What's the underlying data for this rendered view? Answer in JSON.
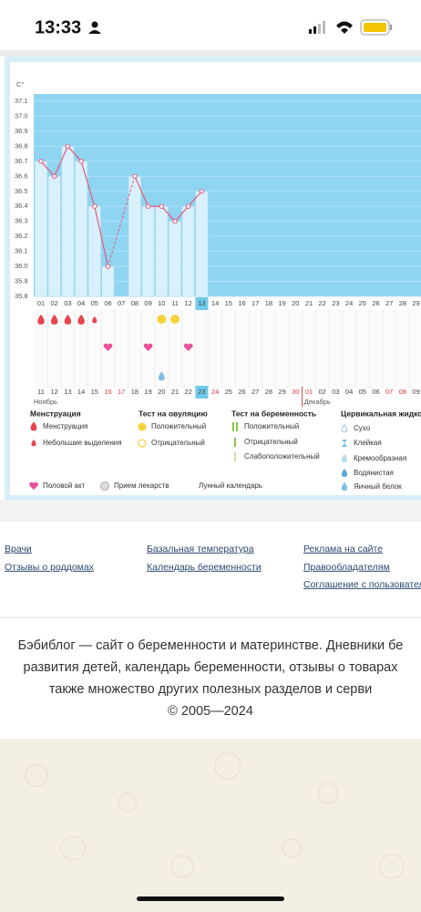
{
  "status_bar": {
    "time": "13:33"
  },
  "chart_data": {
    "type": "line",
    "y_label": "C°",
    "categories": [
      "01",
      "02",
      "03",
      "04",
      "05",
      "06",
      "07",
      "08",
      "09",
      "10",
      "11",
      "12",
      "13",
      "14",
      "15",
      "16",
      "17",
      "18",
      "19",
      "20",
      "21",
      "22",
      "23",
      "24",
      "25",
      "26",
      "27",
      "28",
      "29"
    ],
    "values": [
      36.7,
      36.6,
      36.8,
      36.7,
      36.4,
      36.0,
      null,
      36.6,
      36.4,
      36.4,
      36.3,
      36.4,
      36.5,
      null,
      null,
      null,
      null,
      null,
      null,
      null,
      null,
      null,
      null,
      null,
      null,
      null,
      null,
      null,
      null
    ],
    "color": "#e8587a",
    "ylim": [
      35.8,
      37.1
    ],
    "yticks": [
      35.8,
      35.9,
      {
        "value": 36,
        "label": "36.0"
      },
      36.1,
      36.2,
      36.3,
      36.4,
      36.5,
      36.6,
      36.7,
      36.8,
      36.9,
      {
        "value": 37,
        "label": "37.0"
      },
      37.1
    ],
    "grid": true,
    "highlight_index": 12,
    "events": {
      "menstruation": [
        0,
        1,
        2,
        3
      ],
      "light_discharge": [
        4
      ],
      "ovulation_positive": [
        9,
        10
      ],
      "intercourse": [
        5,
        8,
        11
      ],
      "cervical_watery": [
        9
      ]
    },
    "dates": [
      "11",
      "12",
      "13",
      "14",
      "15",
      "16",
      "17",
      "18",
      "19",
      "20",
      "21",
      "22",
      "23",
      "24",
      "25",
      "26",
      "27",
      "28",
      "29",
      "30",
      "01",
      "02",
      "03",
      "04",
      "05",
      "06",
      "07",
      "08",
      "09"
    ],
    "weekend_indices": [
      5,
      6,
      13,
      19,
      20,
      26,
      27
    ],
    "months": [
      {
        "label": "Ноябрь",
        "index": 0
      },
      {
        "label": "Декабрь",
        "index": 20
      }
    ]
  },
  "legend": {
    "groups": [
      {
        "title": "Менструация",
        "items": [
          "Менструация",
          "Небольшие выделения"
        ]
      },
      {
        "title": "Тест на овуляцию",
        "items": [
          "Положительный",
          "Отрицательный"
        ]
      },
      {
        "title": "Тест на беременность",
        "items": [
          "Положительный",
          "Отрицательный",
          "Слабоположительный"
        ]
      },
      {
        "title": "Цервикальная жидко",
        "items": [
          "Сухо",
          "Клейкая",
          "Кремообразная",
          "Водянистая",
          "Яичный белок"
        ]
      }
    ],
    "extra": [
      "Половой акт",
      "Прием лекарств",
      "Лунный календарь"
    ]
  },
  "footer": {
    "links": [
      [
        "Врачи",
        "Отзывы о роддомах"
      ],
      [
        "Базальная температура",
        "Календарь беременности"
      ],
      [
        "Реклама на сайте",
        "Правообладателям",
        "Соглашение с пользователя"
      ]
    ],
    "about": [
      "Бэбиблог — сайт о беременности и материнстве. Дневники бе",
      "развития детей, календарь беременности, отзывы о товарах",
      "также множество других полезных разделов и серви",
      "© 2005—2024"
    ]
  }
}
